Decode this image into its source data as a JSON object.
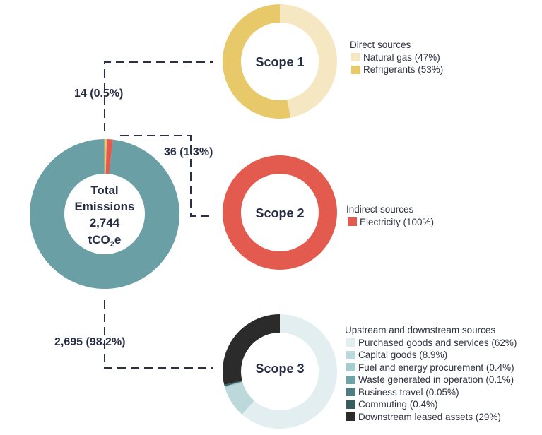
{
  "chart_data": [
    {
      "type": "pie",
      "name": "total",
      "center_label": [
        "Total",
        "Emissions",
        "2,744"
      ],
      "unit": {
        "base": "tCO",
        "sub": "2",
        "tail": "e"
      },
      "values": [
        2695,
        14,
        36
      ],
      "colors": [
        "#6b9fa6",
        "#e8c96a",
        "#e35a4f"
      ]
    },
    {
      "type": "pie",
      "name": "scope1",
      "center_label": "Scope 1",
      "legend_title": "Direct sources",
      "categories": [
        "Natural gas (47%)",
        "Refrigerants (53%)"
      ],
      "values": [
        47,
        53
      ],
      "colors": [
        "#f4e7c1",
        "#e8c96a"
      ]
    },
    {
      "type": "pie",
      "name": "scope2",
      "center_label": "Scope 2",
      "legend_title": "Indirect sources",
      "categories": [
        "Electricity (100%)"
      ],
      "values": [
        100
      ],
      "colors": [
        "#e35a4f"
      ]
    },
    {
      "type": "pie",
      "name": "scope3",
      "center_label": "Scope 3",
      "legend_title": "Upstream and downstream sources",
      "categories": [
        "Purchased goods and services (62%)",
        "Capital goods (8.9%)",
        "Fuel and energy procurement (0.4%)",
        "Waste generated in operation (0.1%)",
        "Business travel (0.05%)",
        "Commuting (0.4%)",
        "Downstream leased assets (29%)"
      ],
      "values": [
        62,
        8.9,
        0.4,
        0.1,
        0.05,
        0.4,
        29
      ],
      "colors": [
        "#e2eeef",
        "#bcd8da",
        "#a7ccd0",
        "#6fa3aa",
        "#4d7d83",
        "#375c5e",
        "#2b2b2b"
      ]
    }
  ],
  "flows": [
    {
      "label": "14 (0.5%)"
    },
    {
      "label": "36 (1.3%)"
    },
    {
      "label": "2,695 (98.2%)"
    }
  ]
}
